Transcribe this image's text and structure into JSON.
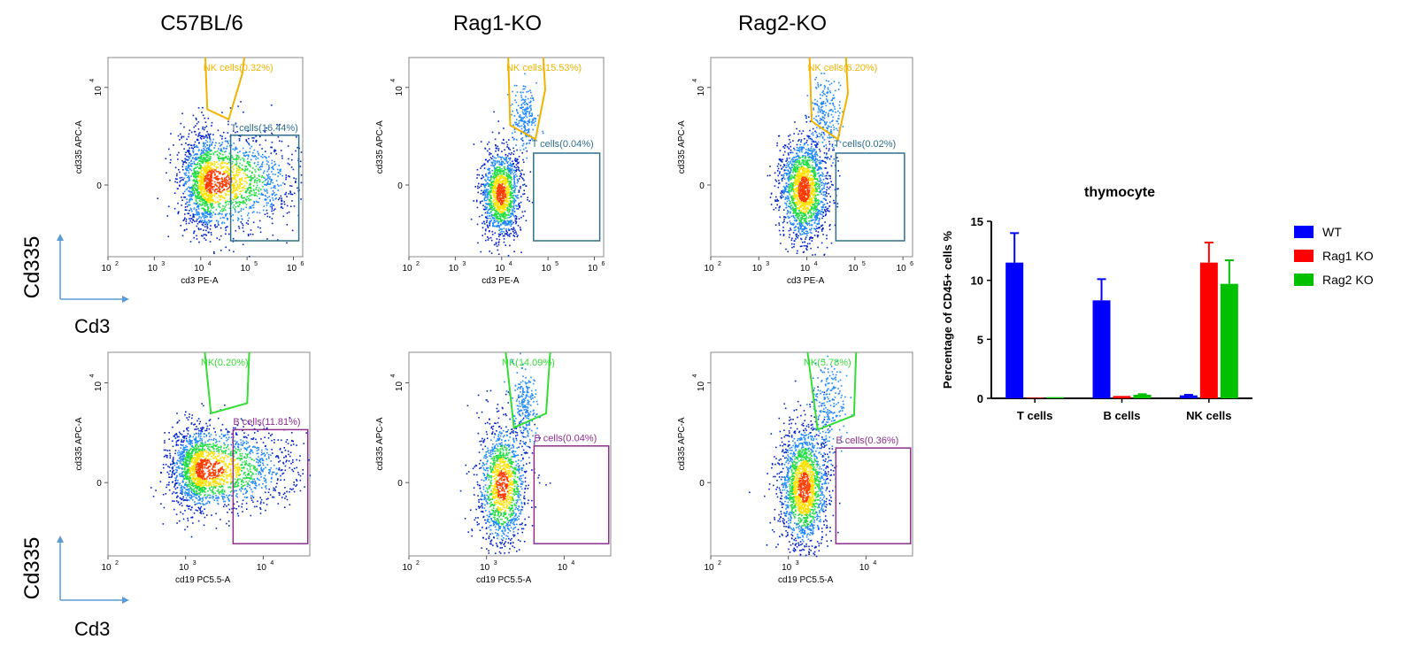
{
  "columns": [
    "C57BL/6",
    "Rag1-KO",
    "Rag2-KO"
  ],
  "axis_legends": [
    {
      "y": "Cd335",
      "x": "Cd3"
    },
    {
      "y": "Cd335",
      "x": "Cd3"
    }
  ],
  "flow_panels": [
    {
      "y_axis_label": "cd335 APC-A",
      "x_axis_label": "cd3 PE-A",
      "y_tick_labels": [
        "10",
        "4",
        "0"
      ],
      "x_tick_labels": [
        "10",
        "2",
        "10",
        "3",
        "10",
        "4",
        "10",
        "5",
        "10",
        "6"
      ],
      "gate_labels": [
        "NK cells(0.32%)",
        "T cells(16.44%)"
      ]
    },
    {
      "y_axis_label": "cd335 APC-A",
      "x_axis_label": "cd3 PE-A",
      "y_tick_labels": [
        "10",
        "4",
        "0"
      ],
      "x_tick_labels": [
        "10",
        "2",
        "10",
        "3",
        "10",
        "4",
        "10",
        "5",
        "10",
        "6"
      ],
      "gate_labels": [
        "NK cells(15.53%)",
        "T cells(0.04%)"
      ]
    },
    {
      "y_axis_label": "cd335 APC-A",
      "x_axis_label": "cd3 PE-A",
      "y_tick_labels": [
        "10",
        "4",
        "0"
      ],
      "x_tick_labels": [
        "10",
        "2",
        "10",
        "3",
        "10",
        "4",
        "10",
        "5",
        "10",
        "6"
      ],
      "gate_labels": [
        "NK cells(6.20%)",
        "T cells(0.02%)"
      ]
    },
    {
      "y_axis_label": "cd335 APC-A",
      "x_axis_label": "cd19 PC5.5-A",
      "y_tick_labels": [
        "10",
        "4",
        "0"
      ],
      "x_tick_labels": [
        "10",
        "2",
        "10",
        "3",
        "10",
        "4"
      ],
      "gate_labels": [
        "NK(0.20%)",
        "B cells(11.81%)"
      ]
    },
    {
      "y_axis_label": "cd335 APC-A",
      "x_axis_label": "cd19 PC5.5-A",
      "y_tick_labels": [
        "10",
        "4",
        "0"
      ],
      "x_tick_labels": [
        "10",
        "2",
        "10",
        "3",
        "10",
        "4"
      ],
      "gate_labels": [
        "NK(14.09%)",
        "B cells(0.04%)"
      ]
    },
    {
      "y_axis_label": "cd335 APC-A",
      "x_axis_label": "cd19 PC5.5-A",
      "y_tick_labels": [
        "10",
        "4",
        "0"
      ],
      "x_tick_labels": [
        "10",
        "2",
        "10",
        "3",
        "10",
        "4"
      ],
      "gate_labels": [
        "NK(5.78%)",
        "B cells(0.36%)"
      ]
    }
  ],
  "chart_data": {
    "type": "bar",
    "title": "thymocyte",
    "xlabel": "",
    "ylabel": "Percentage of CD45+ cells %",
    "categories": [
      "T cells",
      "B cells",
      "NK cells"
    ],
    "ylim": [
      0,
      15
    ],
    "yticks": [
      0,
      5,
      10,
      15
    ],
    "legend_position": "right",
    "series": [
      {
        "name": "WT",
        "color": "#0000ff",
        "values": [
          11.5,
          8.3,
          0.25
        ],
        "errors": [
          2.5,
          1.8,
          0.05
        ]
      },
      {
        "name": "Rag1 KO",
        "color": "#ff0000",
        "values": [
          0.05,
          0.2,
          11.5
        ],
        "errors": [
          0.0,
          0.0,
          1.7
        ]
      },
      {
        "name": "Rag2 KO",
        "color": "#00c000",
        "values": [
          0.1,
          0.3,
          9.7
        ],
        "errors": [
          0.0,
          0.05,
          2.0
        ]
      }
    ]
  }
}
